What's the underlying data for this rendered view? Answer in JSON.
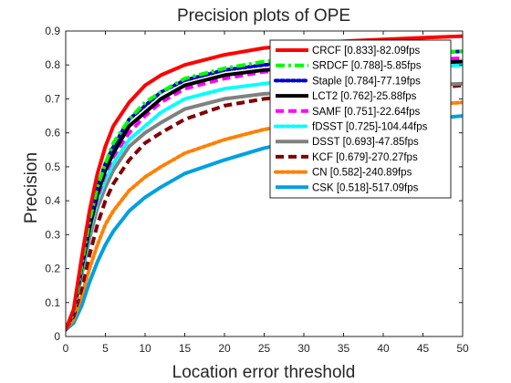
{
  "chart_data": {
    "type": "line",
    "title": "Precision plots of OPE",
    "xlabel": "Location error threshold",
    "ylabel": "Precision",
    "xlim": [
      0,
      50
    ],
    "ylim": [
      0,
      0.9
    ],
    "xticks": [
      "0",
      "5",
      "10",
      "15",
      "20",
      "25",
      "30",
      "35",
      "40",
      "45",
      "50"
    ],
    "yticks": [
      "0",
      "0.1",
      "0.2",
      "0.3",
      "0.4",
      "0.5",
      "0.6",
      "0.7",
      "0.8",
      "0.9"
    ],
    "grid": false,
    "legend_position": "upper-right (inside)",
    "x": [
      0,
      1,
      2,
      3,
      4,
      5,
      6,
      8,
      10,
      12,
      15,
      20,
      25,
      30,
      35,
      40,
      45,
      50
    ],
    "series": [
      {
        "name": "CRCF [0.833]-82.09fps",
        "color": "#ff0000",
        "style": "solid",
        "values": [
          0.02,
          0.08,
          0.23,
          0.37,
          0.48,
          0.56,
          0.62,
          0.69,
          0.74,
          0.77,
          0.8,
          0.83,
          0.85,
          0.86,
          0.87,
          0.875,
          0.88,
          0.885
        ]
      },
      {
        "name": "SRDCF [0.788]-5.85fps",
        "color": "#00ff00",
        "style": "dashdot",
        "values": [
          0.02,
          0.07,
          0.21,
          0.34,
          0.44,
          0.51,
          0.57,
          0.64,
          0.69,
          0.72,
          0.76,
          0.79,
          0.81,
          0.82,
          0.825,
          0.83,
          0.835,
          0.84
        ]
      },
      {
        "name": "Staple [0.784]-77.19fps",
        "color": "#0000cc",
        "style": "dot",
        "values": [
          0.02,
          0.07,
          0.21,
          0.34,
          0.44,
          0.51,
          0.56,
          0.64,
          0.68,
          0.72,
          0.755,
          0.785,
          0.8,
          0.81,
          0.82,
          0.83,
          0.835,
          0.84
        ]
      },
      {
        "name": "LCT2 [0.762]-25.88fps",
        "color": "#000000",
        "style": "solid",
        "values": [
          0.02,
          0.07,
          0.2,
          0.32,
          0.42,
          0.49,
          0.54,
          0.62,
          0.66,
          0.7,
          0.74,
          0.77,
          0.785,
          0.79,
          0.795,
          0.8,
          0.805,
          0.81
        ]
      },
      {
        "name": "SAMF [0.751]-22.64fps",
        "color": "#ff00ff",
        "style": "dash",
        "values": [
          0.02,
          0.07,
          0.2,
          0.32,
          0.41,
          0.48,
          0.53,
          0.6,
          0.65,
          0.69,
          0.73,
          0.76,
          0.78,
          0.79,
          0.8,
          0.81,
          0.815,
          0.82
        ]
      },
      {
        "name": "fDSST [0.725]-104.44fps",
        "color": "#00ffff",
        "style": "dot",
        "values": [
          0.02,
          0.07,
          0.19,
          0.31,
          0.4,
          0.46,
          0.51,
          0.58,
          0.62,
          0.66,
          0.7,
          0.73,
          0.745,
          0.76,
          0.77,
          0.78,
          0.79,
          0.8
        ]
      },
      {
        "name": "DSST [0.693]-47.85fps",
        "color": "#808080",
        "style": "solid",
        "values": [
          0.02,
          0.07,
          0.18,
          0.29,
          0.38,
          0.44,
          0.49,
          0.56,
          0.6,
          0.63,
          0.67,
          0.7,
          0.715,
          0.72,
          0.73,
          0.735,
          0.74,
          0.745
        ]
      },
      {
        "name": "KCF [0.679]-270.27fps",
        "color": "#800000",
        "style": "dash",
        "values": [
          0.02,
          0.06,
          0.14,
          0.24,
          0.33,
          0.4,
          0.45,
          0.52,
          0.57,
          0.6,
          0.64,
          0.68,
          0.7,
          0.71,
          0.72,
          0.725,
          0.73,
          0.74
        ]
      },
      {
        "name": "CN [0.582]-240.89fps",
        "color": "#ff8000",
        "style": "dot",
        "values": [
          0.02,
          0.05,
          0.12,
          0.2,
          0.27,
          0.33,
          0.37,
          0.43,
          0.47,
          0.5,
          0.54,
          0.58,
          0.61,
          0.63,
          0.65,
          0.665,
          0.68,
          0.69
        ]
      },
      {
        "name": "CSK [0.518]-517.09fps",
        "color": "#00a0e0",
        "style": "solid",
        "values": [
          0.02,
          0.04,
          0.09,
          0.16,
          0.22,
          0.27,
          0.31,
          0.37,
          0.41,
          0.44,
          0.48,
          0.52,
          0.555,
          0.58,
          0.6,
          0.62,
          0.64,
          0.65
        ]
      }
    ]
  }
}
